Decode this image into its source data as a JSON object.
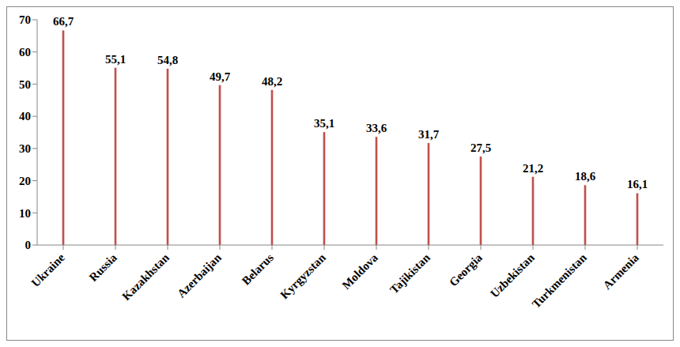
{
  "chart_data": {
    "type": "bar",
    "categories": [
      "Ukraine",
      "Russia",
      "Kazakhstan",
      "Azerbaijan",
      "Belarus",
      "Kyrgyzstan",
      "Moldova",
      "Tajikistan",
      "Georgia",
      "Uzbekistan",
      "Turkmenistan",
      "Armenia"
    ],
    "values": [
      66.7,
      55.1,
      54.8,
      49.7,
      48.2,
      35.1,
      33.6,
      31.7,
      27.5,
      21.2,
      18.6,
      16.1
    ],
    "value_labels": [
      "66,7",
      "55,1",
      "54,8",
      "49,7",
      "48,2",
      "35,1",
      "33,6",
      "31,7",
      "27,5",
      "21,2",
      "18,6",
      "16,1"
    ],
    "color": "#c0504d",
    "ylim": [
      0,
      70
    ],
    "yticks": [
      0,
      10,
      20,
      30,
      40,
      50,
      60,
      70
    ],
    "grid": false,
    "data_labels": true
  }
}
